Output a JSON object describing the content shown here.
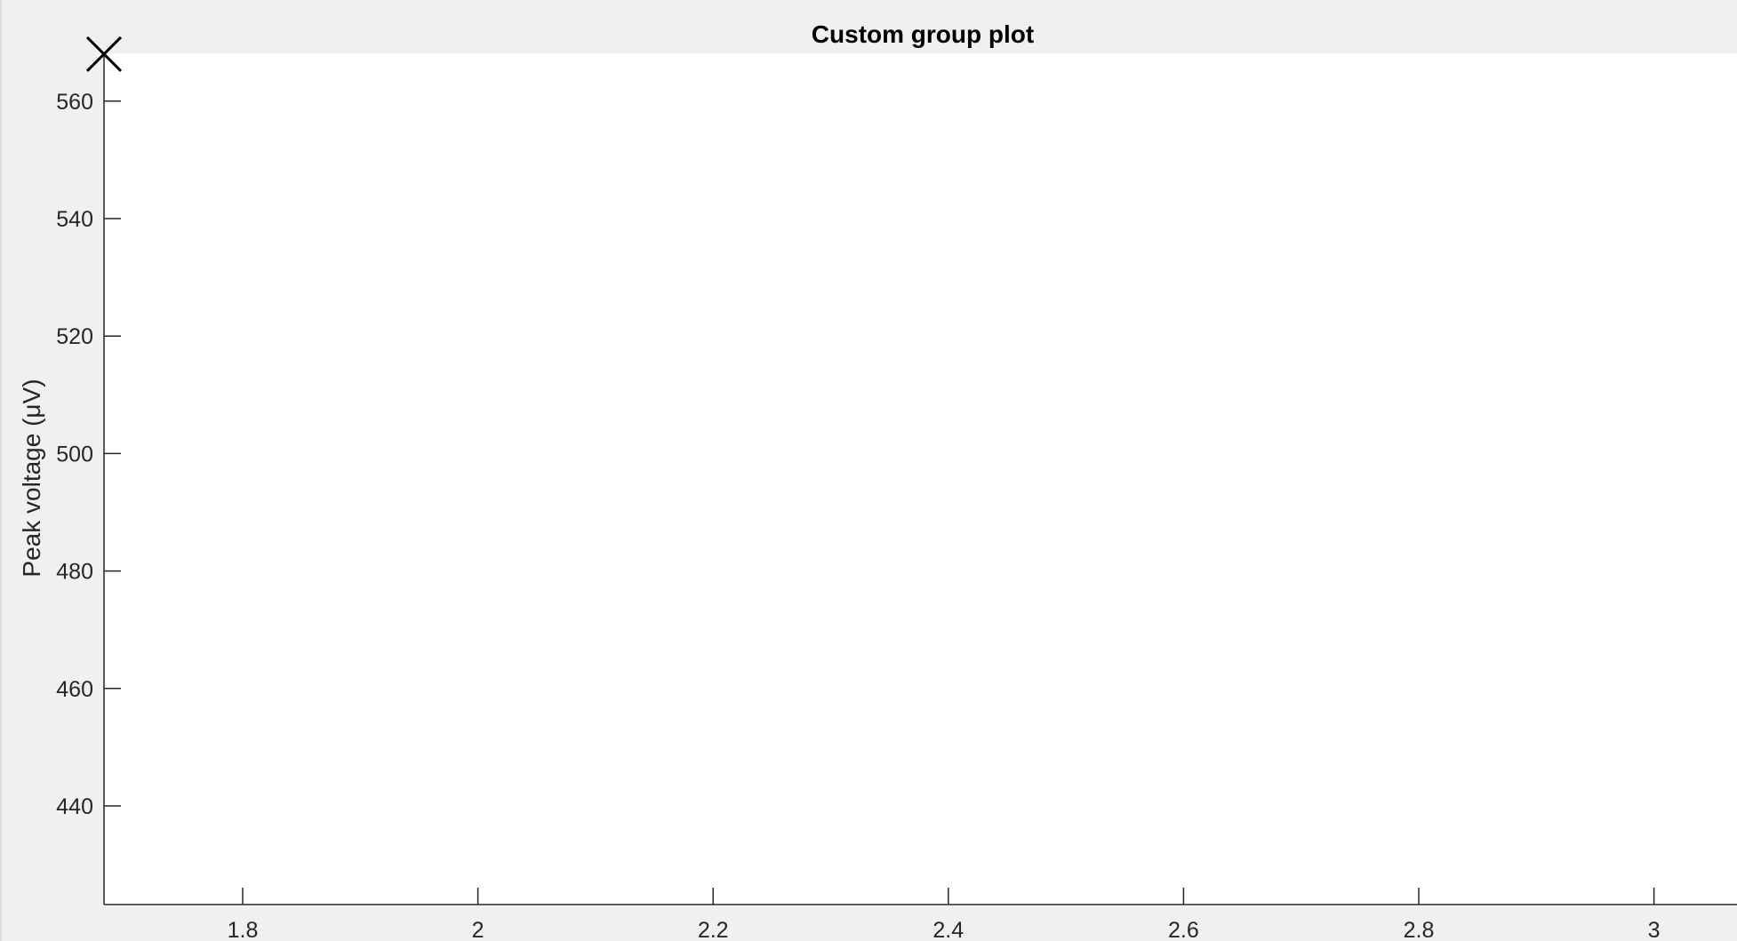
{
  "chart_data": {
    "type": "scatter",
    "title": "Custom group plot",
    "xlabel": "",
    "ylabel": "Peak voltage (μV)",
    "xlim": [
      1.68,
      3.1
    ],
    "ylim": [
      423,
      568
    ],
    "xticks": [
      1.8,
      2,
      2.2,
      2.4,
      2.6,
      2.8,
      3
    ],
    "xtick_labels": [
      "1.8",
      "2",
      "2.2",
      "2.4",
      "2.6",
      "2.8",
      "3"
    ],
    "yticks": [
      440,
      460,
      480,
      500,
      520,
      540,
      560
    ],
    "ytick_labels": [
      "440",
      "460",
      "480",
      "500",
      "520",
      "540",
      "560"
    ],
    "grid": false,
    "series": [
      {
        "marker": "x",
        "color": "#000000",
        "points": [
          {
            "x": 1.68,
            "y": 568
          }
        ]
      }
    ]
  },
  "colors": {
    "figure_background": "#f0f0f0",
    "axes_background": "#ffffff",
    "axis_color": "#262626",
    "marker_color": "#000000"
  }
}
